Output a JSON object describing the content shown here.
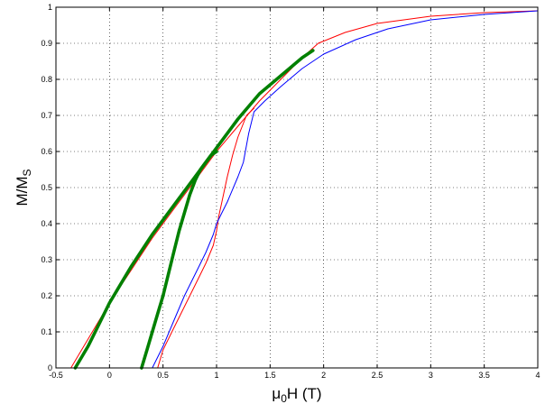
{
  "chart_data": {
    "type": "line",
    "title": "",
    "xlabel": {
      "main": "μ",
      "sub": "0",
      "rest": "H (T)"
    },
    "ylabel": {
      "main": "M/M",
      "sub": "S"
    },
    "xlim": [
      -0.5,
      4
    ],
    "ylim": [
      0,
      1
    ],
    "xticks": [
      "-0.5",
      "0",
      "0.5",
      "1",
      "1.5",
      "2",
      "2.5",
      "3",
      "3.5",
      "4"
    ],
    "yticks": [
      "0",
      "0.1",
      "0.2",
      "0.3",
      "0.4",
      "0.5",
      "0.6",
      "0.7",
      "0.8",
      "0.9",
      "1"
    ],
    "grid": true,
    "legend": "none",
    "series": [
      {
        "color": "#ff0000",
        "stroke": "thin",
        "points": [
          [
            -0.36,
            0.0
          ],
          [
            -0.3,
            0.03
          ],
          [
            -0.2,
            0.08
          ],
          [
            -0.1,
            0.13
          ],
          [
            0.0,
            0.18
          ],
          [
            0.2,
            0.27
          ],
          [
            0.4,
            0.36
          ],
          [
            0.6,
            0.44
          ],
          [
            0.8,
            0.52
          ],
          [
            1.0,
            0.6
          ],
          [
            1.2,
            0.67
          ],
          [
            1.4,
            0.74
          ],
          [
            1.6,
            0.8
          ],
          [
            1.8,
            0.86
          ],
          [
            1.95,
            0.9
          ],
          [
            2.2,
            0.93
          ],
          [
            2.5,
            0.955
          ],
          [
            3.0,
            0.975
          ],
          [
            3.5,
            0.985
          ],
          [
            4.0,
            0.99
          ]
        ]
      },
      {
        "color": "#ff0000",
        "stroke": "thin",
        "points": [
          [
            0.45,
            0.0
          ],
          [
            0.5,
            0.05
          ],
          [
            0.6,
            0.11
          ],
          [
            0.7,
            0.17
          ],
          [
            0.8,
            0.23
          ],
          [
            0.9,
            0.29
          ],
          [
            0.97,
            0.34
          ],
          [
            1.0,
            0.38
          ],
          [
            1.02,
            0.42
          ],
          [
            1.05,
            0.46
          ],
          [
            1.1,
            0.53
          ],
          [
            1.15,
            0.59
          ],
          [
            1.2,
            0.64
          ],
          [
            1.28,
            0.7
          ],
          [
            1.35,
            0.72
          ]
        ]
      },
      {
        "color": "#0000ff",
        "stroke": "thin",
        "points": [
          [
            0.4,
            0.0
          ],
          [
            0.5,
            0.06
          ],
          [
            0.6,
            0.13
          ],
          [
            0.7,
            0.2
          ],
          [
            0.8,
            0.26
          ],
          [
            0.9,
            0.32
          ],
          [
            0.97,
            0.37
          ],
          [
            1.0,
            0.4
          ],
          [
            1.05,
            0.43
          ],
          [
            1.1,
            0.46
          ],
          [
            1.2,
            0.53
          ],
          [
            1.25,
            0.57
          ],
          [
            1.3,
            0.65
          ],
          [
            1.35,
            0.71
          ],
          [
            1.45,
            0.74
          ],
          [
            1.6,
            0.78
          ],
          [
            1.8,
            0.83
          ],
          [
            2.0,
            0.87
          ],
          [
            2.3,
            0.91
          ],
          [
            2.6,
            0.94
          ],
          [
            3.0,
            0.965
          ],
          [
            3.5,
            0.98
          ],
          [
            4.0,
            0.99
          ]
        ]
      },
      {
        "color": "#008000",
        "stroke": "thick",
        "points": [
          [
            -0.32,
            0.0
          ],
          [
            -0.2,
            0.06
          ],
          [
            -0.1,
            0.12
          ],
          [
            0.0,
            0.18
          ],
          [
            0.2,
            0.28
          ],
          [
            0.4,
            0.37
          ],
          [
            0.6,
            0.45
          ],
          [
            0.8,
            0.53
          ],
          [
            1.0,
            0.61
          ],
          [
            1.2,
            0.69
          ],
          [
            1.4,
            0.76
          ],
          [
            1.6,
            0.81
          ],
          [
            1.8,
            0.86
          ],
          [
            1.9,
            0.88
          ]
        ]
      },
      {
        "color": "#008000",
        "stroke": "thick",
        "points": [
          [
            0.3,
            0.0
          ],
          [
            0.35,
            0.05
          ],
          [
            0.4,
            0.1
          ],
          [
            0.45,
            0.15
          ],
          [
            0.5,
            0.2
          ],
          [
            0.55,
            0.26
          ],
          [
            0.6,
            0.32
          ],
          [
            0.65,
            0.38
          ],
          [
            0.7,
            0.43
          ],
          [
            0.75,
            0.48
          ],
          [
            0.8,
            0.52
          ],
          [
            0.85,
            0.55
          ],
          [
            0.9,
            0.57
          ],
          [
            0.95,
            0.59
          ],
          [
            1.0,
            0.6
          ]
        ]
      }
    ]
  }
}
